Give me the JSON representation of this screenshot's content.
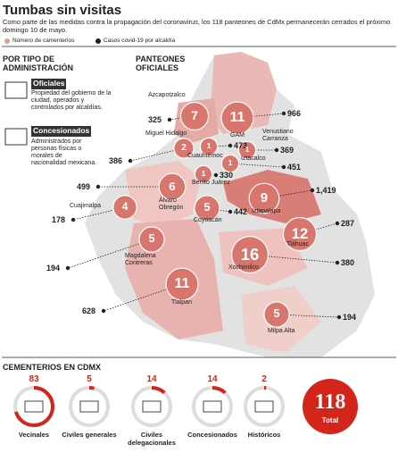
{
  "header": {
    "title": "Tumbas sin visitas",
    "subtitle": "Como parte de las medidas contra la propagación del coronavirus, los 118 panteones de CdMx permanecerán cerrados el próximo domingo 10 de mayo."
  },
  "legend": {
    "cemeteries": "Número de camenterios",
    "cases": "Casos covid-19 por alcaldía"
  },
  "sidebar": {
    "title": "POR TIPO DE ADMINISTRACIÓN",
    "items": [
      {
        "label": "Oficiales",
        "text": "Propiedad del gobierno de la ciudad, operados y controlados por alcaldías."
      },
      {
        "label": "Concesionados",
        "text": "Administrados por personas físicas o morales de nacionalidad mexicana."
      }
    ]
  },
  "map": {
    "title": "PANTEONES OFICIALES",
    "boroughs": [
      {
        "name": "Azcapotzalco",
        "cemeteries": 7,
        "cases": "325"
      },
      {
        "name": "GAM",
        "cemeteries": 11,
        "cases": "966"
      },
      {
        "name": "Miguel Hidalgo",
        "cemeteries": 2,
        "cases": "386"
      },
      {
        "name": "Cuauhtémoc",
        "cemeteries": 1,
        "cases": "473"
      },
      {
        "name": "Venustiano Carranza",
        "cemeteries": 1,
        "cases": "369"
      },
      {
        "name": "Iztacalco",
        "cemeteries": 1,
        "cases": "451"
      },
      {
        "name": "Benito Juárez",
        "cemeteries": 1,
        "cases": "330"
      },
      {
        "name": "Iztapalapa",
        "cemeteries": 9,
        "cases": "1,419"
      },
      {
        "name": "Álvaro Obregón",
        "cemeteries": 6,
        "cases": "499"
      },
      {
        "name": "Coyoacán",
        "cemeteries": 5,
        "cases": "442"
      },
      {
        "name": "Cuajimalpa",
        "cemeteries": 4,
        "cases": "178"
      },
      {
        "name": "Tláhuac",
        "cemeteries": 12,
        "cases": "287"
      },
      {
        "name": "Magdalena Contreras",
        "cemeteries": 5,
        "cases": "194"
      },
      {
        "name": "Xochimilco",
        "cemeteries": 16,
        "cases": "380"
      },
      {
        "name": "Tlalpan",
        "cemeteries": 11,
        "cases": "628"
      },
      {
        "name": "Milpa Alta",
        "cemeteries": 5,
        "cases": "194"
      }
    ]
  },
  "cemeteries": {
    "title": "CEMENTERIOS EN CDMX",
    "types": [
      {
        "label": "Vecinales",
        "value": 83
      },
      {
        "label": "Civiles generales",
        "value": 5
      },
      {
        "label": "Civiles delegacionales",
        "value": 14
      },
      {
        "label": "Concesionados",
        "value": 14
      },
      {
        "label": "Históricos",
        "value": 2
      }
    ],
    "total": {
      "value": 118,
      "label": "Total"
    }
  }
}
